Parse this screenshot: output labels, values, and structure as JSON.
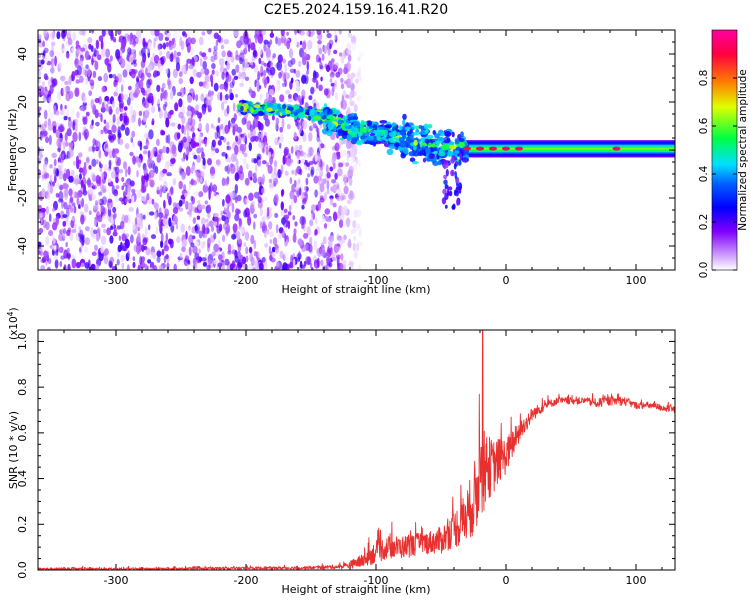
{
  "title": "C2E5.2024.159.16.41.R20",
  "chart_data": [
    {
      "type": "heatmap",
      "title": "C2E5.2024.159.16.41.R20",
      "xlabel": "Height of straight line (km)",
      "ylabel": "Frequency (Hz)",
      "xlim": [
        -360,
        130
      ],
      "ylim": [
        -50,
        50
      ],
      "x_ticks": [
        -300,
        -200,
        -100,
        0,
        100
      ],
      "x_tick_labels": [
        "-300",
        "-200",
        "-100",
        "0",
        "100"
      ],
      "y_ticks": [
        -40,
        -20,
        0,
        20,
        40
      ],
      "y_tick_labels": [
        "-40",
        "-20",
        "0",
        "20",
        "40"
      ],
      "colorbar": {
        "label": "Normalized spectral amplitude",
        "range": [
          0,
          1
        ],
        "ticks": [
          0.0,
          0.2,
          0.4,
          0.6,
          0.8
        ],
        "tick_labels": [
          "0.0",
          "0.2",
          "0.4",
          "0.6",
          "0.8"
        ],
        "colors": [
          "#ffffff",
          "#a000ff",
          "#0000ff",
          "#00e0ff",
          "#00ff40",
          "#e0ff00",
          "#ff8000",
          "#ff0040",
          "#ff00a0"
        ]
      },
      "noise_region_x": [
        -360,
        -135
      ],
      "ridge": [
        {
          "x": -200,
          "f": 18
        },
        {
          "x": -160,
          "f": 16
        },
        {
          "x": -140,
          "f": 14
        },
        {
          "x": -120,
          "f": 9
        },
        {
          "x": -100,
          "f": 7
        },
        {
          "x": -80,
          "f": 5
        },
        {
          "x": -60,
          "f": 3
        },
        {
          "x": -40,
          "f": 1
        },
        {
          "x": -20,
          "f": 0
        },
        {
          "x": 0,
          "f": 1
        },
        {
          "x": 50,
          "f": 0.5
        },
        {
          "x": 130,
          "f": 0.5
        }
      ],
      "carrier_band": {
        "x_start": -35,
        "x_end": 130,
        "f_center": 0.5,
        "f_halfwidth": 3
      },
      "hot_spots": [
        -30,
        -20,
        -10,
        0,
        10,
        85
      ]
    },
    {
      "type": "line",
      "xlabel": "Height of straight line (km)",
      "ylabel": "SNR (10 * v/v)",
      "y_multiplier": "(x10",
      "y_multiplier_exp": "4",
      "y_multiplier_close": ")",
      "xlim": [
        -360,
        130
      ],
      "ylim": [
        0,
        1.05
      ],
      "x_ticks": [
        -300,
        -200,
        -100,
        0,
        100
      ],
      "x_tick_labels": [
        "-300",
        "-200",
        "-100",
        "0",
        "100"
      ],
      "y_ticks": [
        0,
        0.2,
        0.4,
        0.6,
        0.8,
        1.0
      ],
      "y_tick_labels": [
        "0.0",
        "0.2",
        "0.4",
        "0.6",
        "0.8",
        "1.0"
      ],
      "series": [
        {
          "name": "SNR",
          "color": "#e83030",
          "x": [
            -360,
            -300,
            -250,
            -200,
            -150,
            -125,
            -110,
            -100,
            -90,
            -80,
            -70,
            -60,
            -50,
            -40,
            -35,
            -30,
            -25,
            -22,
            -20,
            -18,
            -15,
            -10,
            -5,
            0,
            10,
            20,
            30,
            40,
            50,
            60,
            70,
            80,
            90,
            100,
            110,
            120,
            130
          ],
          "mean": [
            0.005,
            0.005,
            0.005,
            0.008,
            0.01,
            0.015,
            0.04,
            0.08,
            0.1,
            0.1,
            0.11,
            0.12,
            0.13,
            0.18,
            0.2,
            0.24,
            0.3,
            0.35,
            0.5,
            0.38,
            0.45,
            0.45,
            0.48,
            0.5,
            0.6,
            0.68,
            0.72,
            0.74,
            0.74,
            0.74,
            0.73,
            0.74,
            0.74,
            0.72,
            0.72,
            0.71,
            0.7
          ],
          "noise": [
            0.005,
            0.005,
            0.005,
            0.006,
            0.006,
            0.01,
            0.03,
            0.05,
            0.05,
            0.05,
            0.05,
            0.05,
            0.06,
            0.08,
            0.1,
            0.12,
            0.15,
            0.2,
            0.15,
            0.15,
            0.15,
            0.12,
            0.1,
            0.08,
            0.05,
            0.03,
            0.02,
            0.015,
            0.015,
            0.015,
            0.02,
            0.02,
            0.02,
            0.015,
            0.015,
            0.015,
            0.015
          ],
          "peak": {
            "x": -18,
            "y": 1.05
          }
        }
      ]
    }
  ]
}
